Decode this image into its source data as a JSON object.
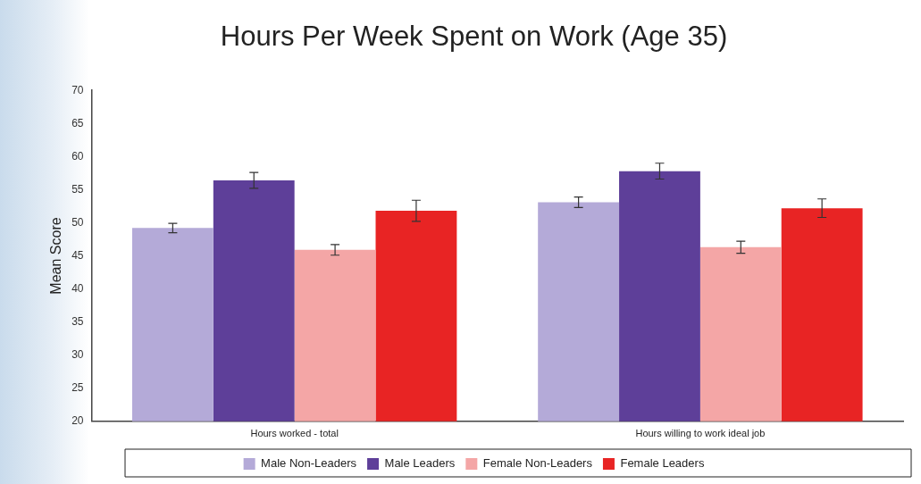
{
  "chart_data": {
    "type": "bar",
    "title": "Hours Per Week Spent on Work (Age 35)",
    "ylabel": "Mean Score",
    "categories": [
      "Hours worked - total",
      "Hours willing to work ideal job"
    ],
    "series": [
      {
        "name": "Male Non-Leaders",
        "color": "#b4aad8",
        "values": [
          49.2,
          53.1
        ],
        "errors": [
          0.7,
          0.8
        ]
      },
      {
        "name": "Male Leaders",
        "color": "#5e3f99",
        "values": [
          56.4,
          57.8
        ],
        "errors": [
          1.2,
          1.2
        ]
      },
      {
        "name": "Female Non-Leaders",
        "color": "#f4a6a6",
        "values": [
          45.9,
          46.3
        ],
        "errors": [
          0.8,
          0.9
        ]
      },
      {
        "name": "Female Leaders",
        "color": "#e82424",
        "values": [
          51.8,
          52.2
        ],
        "errors": [
          1.6,
          1.4
        ]
      }
    ],
    "ylim": [
      20,
      70
    ],
    "yticks": [
      20,
      25,
      30,
      35,
      40,
      45,
      50,
      55,
      60,
      65,
      70
    ],
    "grid": false,
    "legend": "bottom"
  }
}
